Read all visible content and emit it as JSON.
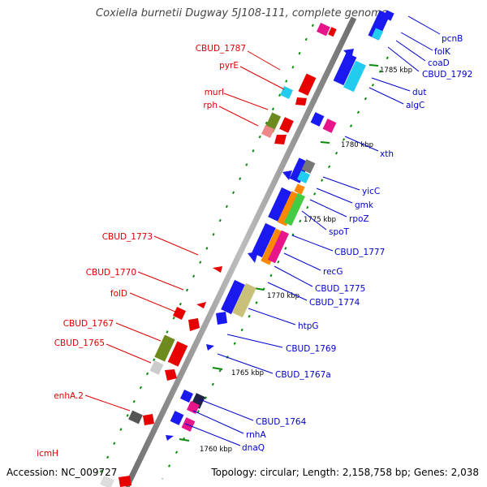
{
  "title": "Coxiella burnetii Dugway 5J108-111, complete genome.",
  "footer": {
    "accession": "Accession: NC_009727",
    "topology": "Topology: circular; Length: 2,158,758 bp; Genes: 2,038"
  },
  "colors": {
    "left_label": "#dd0000",
    "right_label": "#0000cc",
    "backbone": "#999999",
    "tick": "#008800"
  },
  "scale_labels": [
    "1785 kbp",
    "1780 kbp",
    "1775 kbp",
    "1770 kbp",
    "1765 kbp",
    "1760 kbp"
  ],
  "left_labels": [
    "CBUD_1787",
    "pyrE",
    "murI",
    "rph",
    "CBUD_1773",
    "CBUD_1770",
    "folD",
    "CBUD_1767",
    "CBUD_1765",
    "enhA.2",
    "icmH"
  ],
  "right_labels": [
    "pcnB",
    "folK",
    "coaD",
    "CBUD_1792",
    "dut",
    "algC",
    "xth",
    "yicC",
    "gmk",
    "rpoZ",
    "spoT",
    "CBUD_1777",
    "recG",
    "CBUD_1775",
    "CBUD_1774",
    "htpG",
    "CBUD_1769",
    "CBUD_1767a",
    "CBUD_1764",
    "rnhA",
    "dnaQ"
  ]
}
